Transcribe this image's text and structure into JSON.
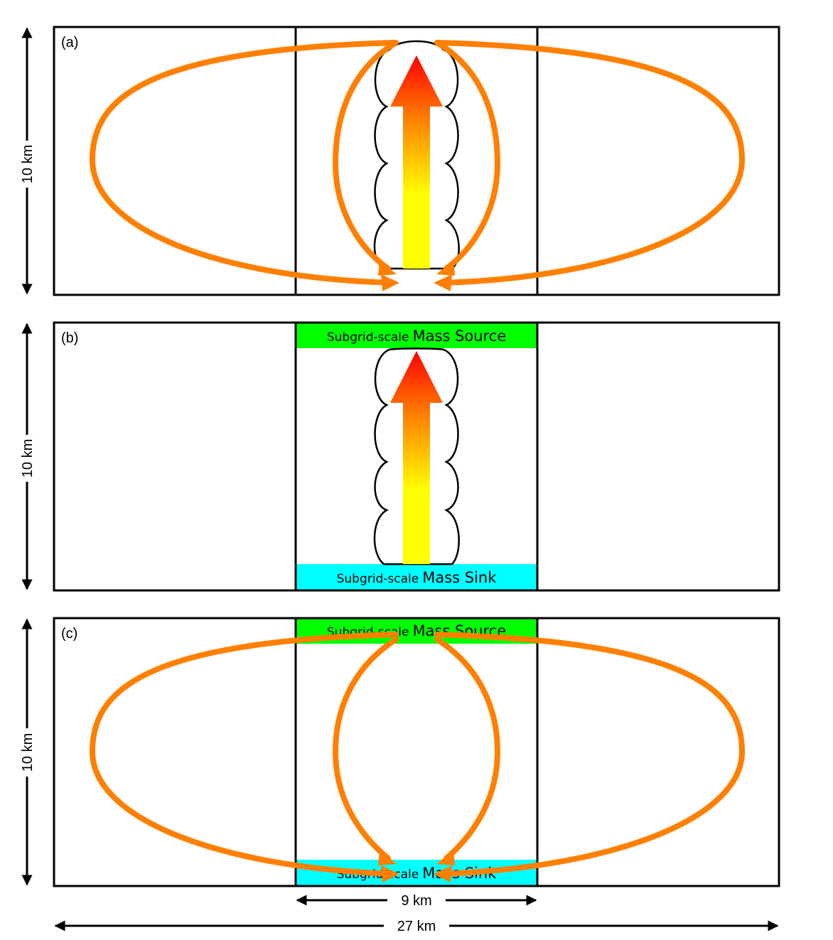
{
  "panels": [
    {
      "label": "(a)",
      "height_label": "10 km",
      "shows_convection": true,
      "shows_bands": false,
      "shows_circulation": true
    },
    {
      "label": "(b)",
      "height_label": "10 km",
      "shows_convection": true,
      "shows_bands": true,
      "shows_circulation": false
    },
    {
      "label": "(c)",
      "height_label": "10 km",
      "shows_convection": false,
      "shows_bands": true,
      "shows_circulation": true
    }
  ],
  "bands": {
    "source": {
      "prefix": "Subgrid-scale",
      "main": "Mass Source",
      "color": "#00ff00"
    },
    "sink": {
      "prefix": "Subgrid-scale",
      "main": "Mass Sink",
      "color": "#00ffff"
    }
  },
  "dimensions": {
    "inner_width": "9 km",
    "total_width": "27 km"
  },
  "colors": {
    "circulation": "#ff8000",
    "updraft_top": "#ff0000",
    "updraft_mid": "#ff8000",
    "updraft_bottom": "#ffff00",
    "outline": "#000000"
  }
}
